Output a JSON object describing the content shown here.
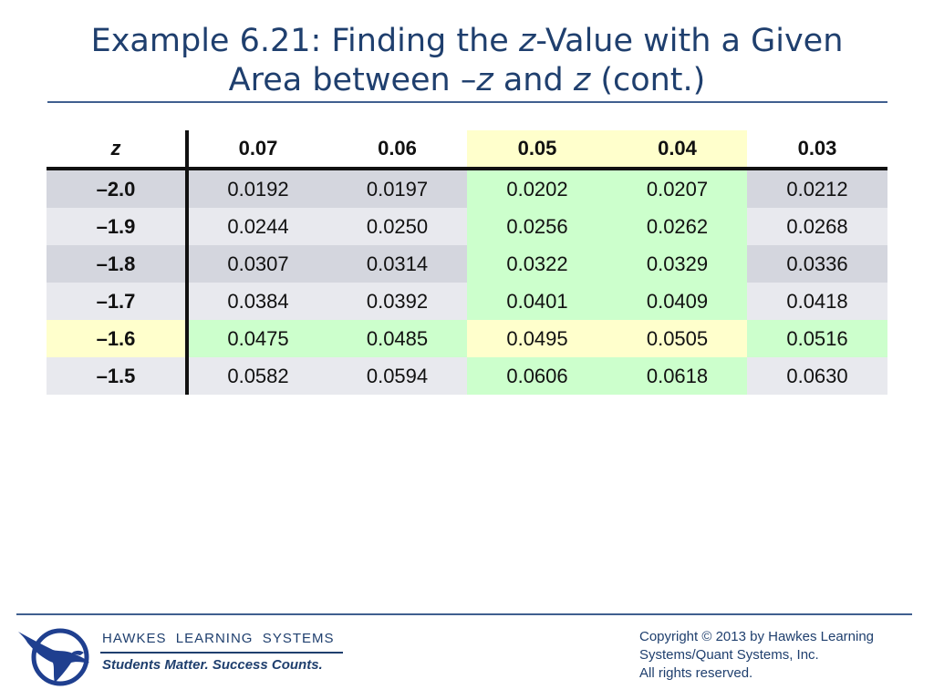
{
  "slide": {
    "title": {
      "line1_a": "Example 6.21: Finding the ",
      "line1_z": "z",
      "line1_b": "-Value with a Given",
      "line2_a": "Area between ",
      "line2_neg": "–",
      "line2_z1": "z",
      "line2_b": " and ",
      "line2_z2": "z",
      "line2_c": " (cont.)"
    }
  },
  "table": {
    "headers": [
      "z",
      "0.07",
      "0.06",
      "0.05",
      "0.04",
      "0.03"
    ],
    "rows": [
      {
        "z": "–2.0",
        "values": [
          "0.0192",
          "0.0197",
          "0.0202",
          "0.0207",
          "0.0212"
        ]
      },
      {
        "z": "–1.9",
        "values": [
          "0.0244",
          "0.0250",
          "0.0256",
          "0.0262",
          "0.0268"
        ]
      },
      {
        "z": "–1.8",
        "values": [
          "0.0307",
          "0.0314",
          "0.0322",
          "0.0329",
          "0.0336"
        ]
      },
      {
        "z": "–1.7",
        "values": [
          "0.0384",
          "0.0392",
          "0.0401",
          "0.0409",
          "0.0418"
        ]
      },
      {
        "z": "–1.6",
        "values": [
          "0.0475",
          "0.0485",
          "0.0495",
          "0.0505",
          "0.0516"
        ]
      },
      {
        "z": "–1.5",
        "values": [
          "0.0582",
          "0.0594",
          "0.0606",
          "0.0618",
          "0.0630"
        ]
      }
    ],
    "colors": {
      "dark_row": "#d4d6de",
      "light_row": "#e8e9ee",
      "highlight_green": "#ccffcc",
      "highlight_yellow": "#ffffcc",
      "title_blue": "#1f3f6e"
    }
  },
  "footer": {
    "logo_icon": "eagle-logo-icon",
    "brand": "HAWKES  LEARNING  SYSTEMS",
    "tagline": "Students Matter. Success Counts.",
    "copyright_lines": [
      "Copyright © 2013 by Hawkes Learning",
      "Systems/Quant Systems, Inc.",
      "All rights reserved."
    ]
  }
}
